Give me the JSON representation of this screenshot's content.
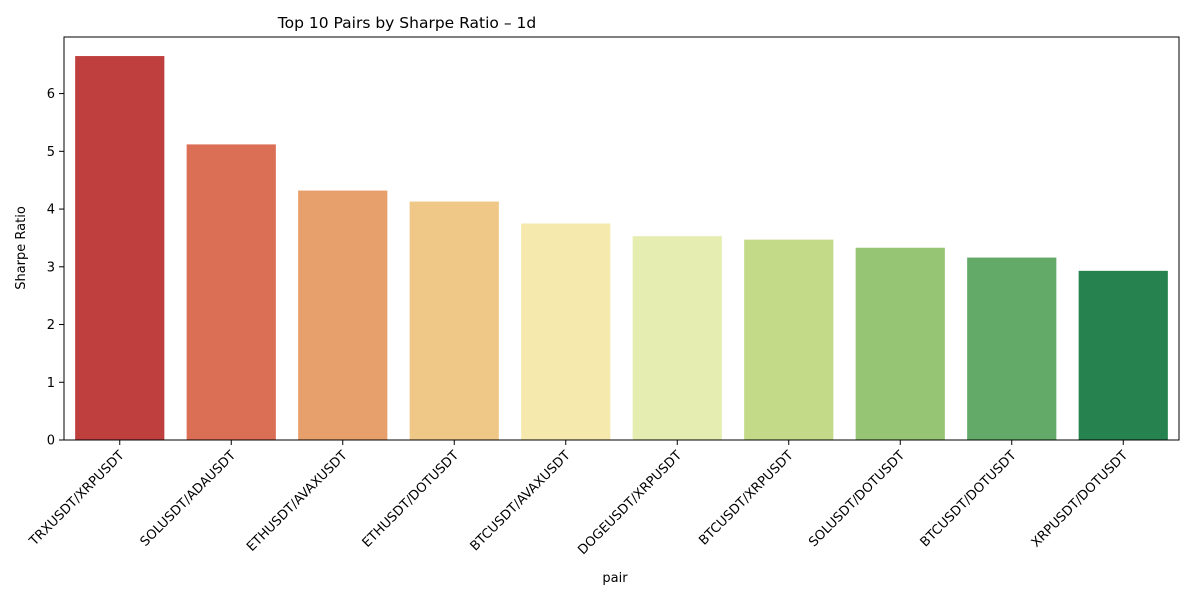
{
  "chart_data": {
    "type": "bar",
    "title": "Top 10 Pairs by Sharpe Ratio – 1d",
    "xlabel": "pair",
    "ylabel": "Sharpe Ratio",
    "categories": [
      "TRXUSDT/XRPUSDT",
      "SOLUSDT/ADAUSDT",
      "ETHUSDT/AVAXUSDT",
      "ETHUSDT/DOTUSDT",
      "BTCUSDT/AVAXUSDT",
      "DOGEUSDT/XRPUSDT",
      "BTCUSDT/XRPUSDT",
      "SOLUSDT/DOTUSDT",
      "BTCUSDT/DOTUSDT",
      "XRPUSDT/DOTUSDT"
    ],
    "values": [
      6.65,
      5.12,
      4.32,
      4.13,
      3.75,
      3.53,
      3.47,
      3.33,
      3.16,
      2.93
    ],
    "colors": [
      "#bf3f3f",
      "#da6f56",
      "#e79f6c",
      "#efc887",
      "#f5e9ae",
      "#e5edb1",
      "#c3db88",
      "#96c574",
      "#63aa68",
      "#268350"
    ],
    "ylim": [
      0,
      6.98
    ],
    "yticks": [
      0,
      1,
      2,
      3,
      4,
      5,
      6
    ],
    "grid": false,
    "legend": "none"
  }
}
